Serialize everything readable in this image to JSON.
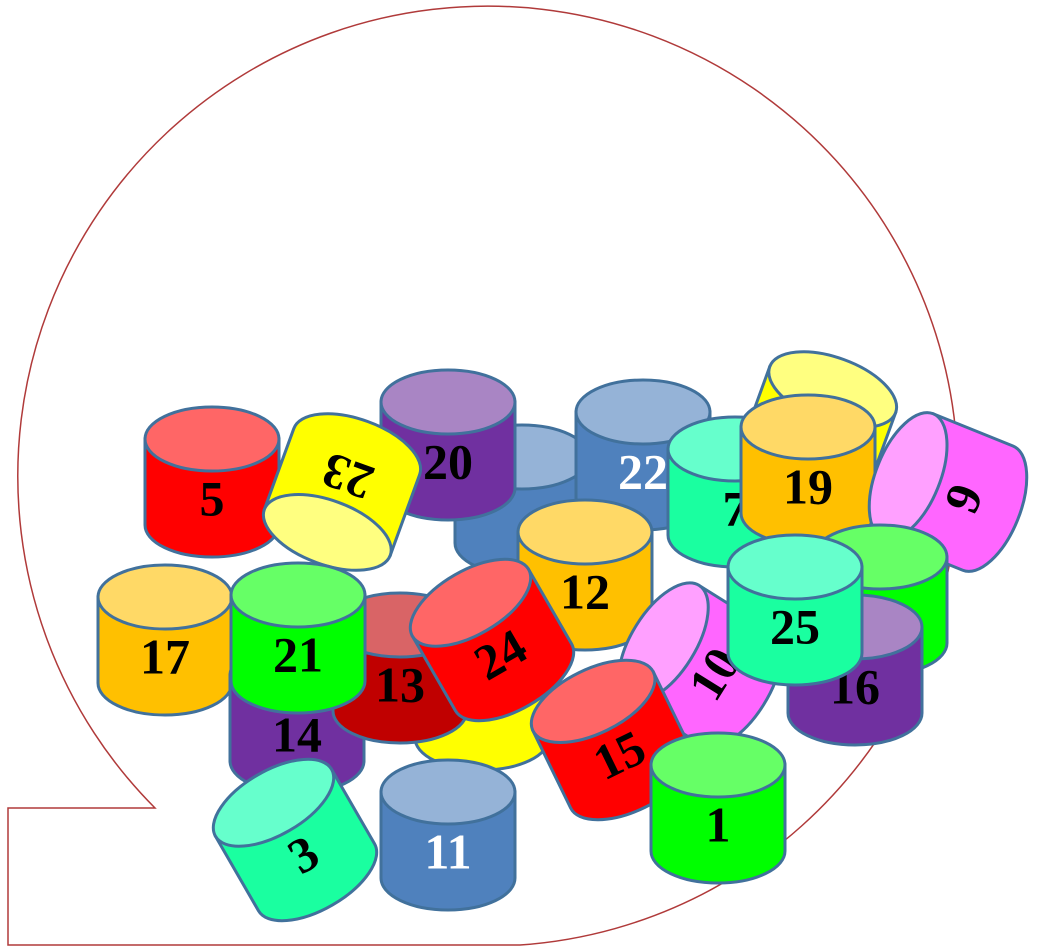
{
  "tokens": [
    {
      "label": "20"
    },
    {
      "label": "22"
    },
    {
      "label": "7"
    },
    {
      "label": "19"
    },
    {
      "label": "9"
    },
    {
      "label": "5"
    },
    {
      "label": "23"
    },
    {
      "label": "16"
    },
    {
      "label": "12"
    },
    {
      "label": "17"
    },
    {
      "label": "14"
    },
    {
      "label": "13"
    },
    {
      "label": "21"
    },
    {
      "label": "10"
    },
    {
      "label": "24"
    },
    {
      "label": "25"
    },
    {
      "label": "15"
    },
    {
      "label": "1"
    },
    {
      "label": "11"
    },
    {
      "label": "3"
    }
  ]
}
